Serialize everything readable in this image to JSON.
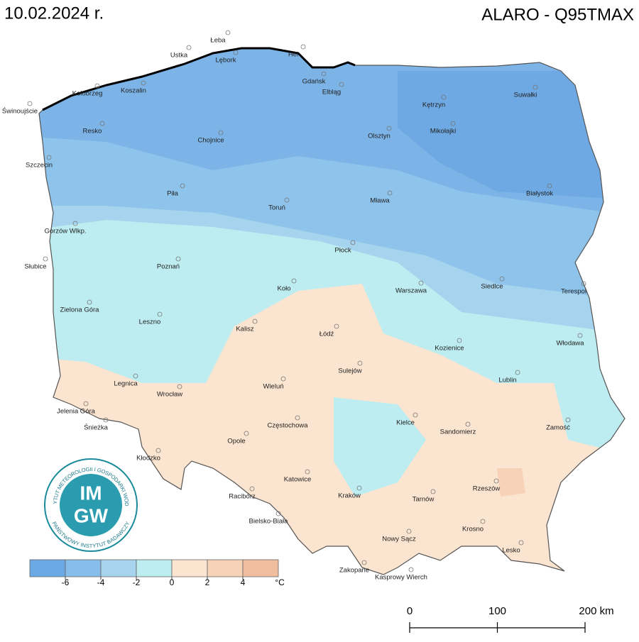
{
  "header": {
    "date": "10.02.2024 r.",
    "model": "ALARO - Q95TMAX"
  },
  "cities": [
    "Łeba",
    "Ustka",
    "Hel",
    "Lębork",
    "Gdańsk",
    "Elbląg",
    "Kołobrzeg",
    "Koszalin",
    "Świnoujście",
    "Kętrzyn",
    "Suwałki",
    "Resko",
    "Chojnice",
    "Olsztyn",
    "Mikołajki",
    "Szczecin",
    "Piła",
    "Toruń",
    "Mława",
    "Białystok",
    "Gorzów Wlkp.",
    "Płock",
    "Słubice",
    "Poznań",
    "Siedlce",
    "Terespol",
    "Koło",
    "Warszawa",
    "Zielona Góra",
    "Leszno",
    "Łódź",
    "Kalisz",
    "Kozienice",
    "Włodawa",
    "Sulejów",
    "Lublin",
    "Legnica",
    "Wrocław",
    "Wieluń",
    "Jelenia Góra",
    "Częstochowa",
    "Kielce",
    "Sandomierz",
    "Zamość",
    "Śnieżka",
    "Opole",
    "Kłodzko",
    "Katowice",
    "Rzeszów",
    "Racibórz",
    "Kraków",
    "Tarnów",
    "Bielsko-Biała",
    "Krosno",
    "Nowy Sącz",
    "Lesko",
    "Zakopane",
    "Kasprowy Wierch"
  ],
  "legend": {
    "colors": [
      "#6aa9e3",
      "#86bdea",
      "#a6d3ee",
      "#bdedf0",
      "#fbe4d0",
      "#f7d2b7",
      "#f0bd9e"
    ],
    "ticks": [
      -6,
      -4,
      -2,
      0,
      2,
      4
    ],
    "unit": "°C"
  },
  "scale_bar": {
    "ticks": [
      0,
      100,
      {
        "value": 200,
        "label": "200 km"
      }
    ]
  },
  "logo": {
    "acronym_top": "IM",
    "acronym_bottom": "GW",
    "ring_top": "INSTYTUT METEOROLOGII I GOSPODARKI WODNEJ",
    "ring_bottom": "PAŃSTWOWY INSTYTUT BADAWCZY"
  }
}
